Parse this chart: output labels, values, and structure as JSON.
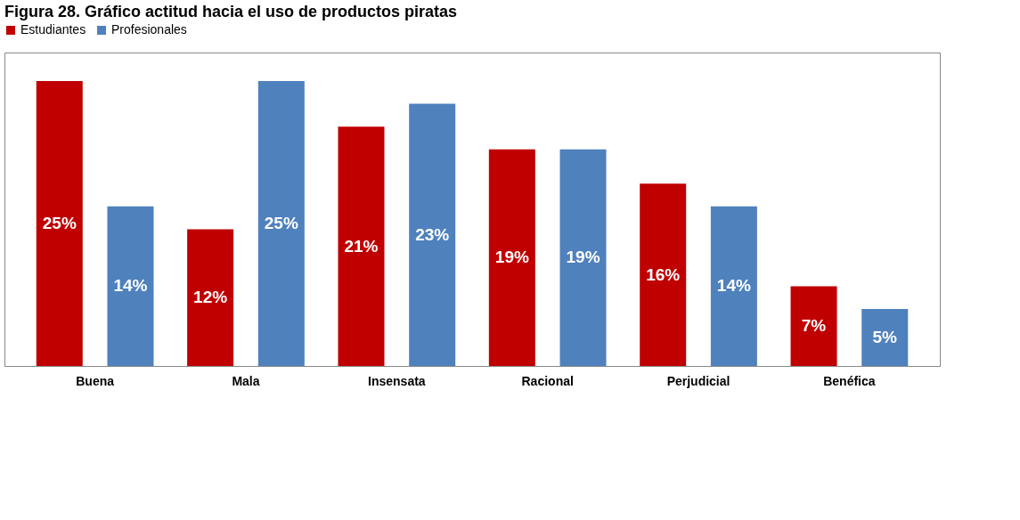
{
  "chart_data": {
    "type": "bar",
    "title": "Figura 28. Gráfico actitud hacia el uso de productos piratas",
    "categories": [
      "Buena",
      "Mala",
      "Insensata",
      "Racional",
      "Perjudicial",
      "Benéfica"
    ],
    "series": [
      {
        "name": "Estudiantes",
        "color": "#c00000",
        "values": [
          25,
          12,
          21,
          19,
          16,
          7
        ],
        "value_labels": [
          "25%",
          "12%",
          "21%",
          "19%",
          "16%",
          "7%"
        ]
      },
      {
        "name": "Profesionales",
        "color": "#4f81bd",
        "values": [
          14,
          25,
          23,
          19,
          14,
          5
        ],
        "value_labels": [
          "14%",
          "25%",
          "23%",
          "19%",
          "14%",
          "5%"
        ]
      }
    ],
    "legend": "top",
    "grid": false
  }
}
